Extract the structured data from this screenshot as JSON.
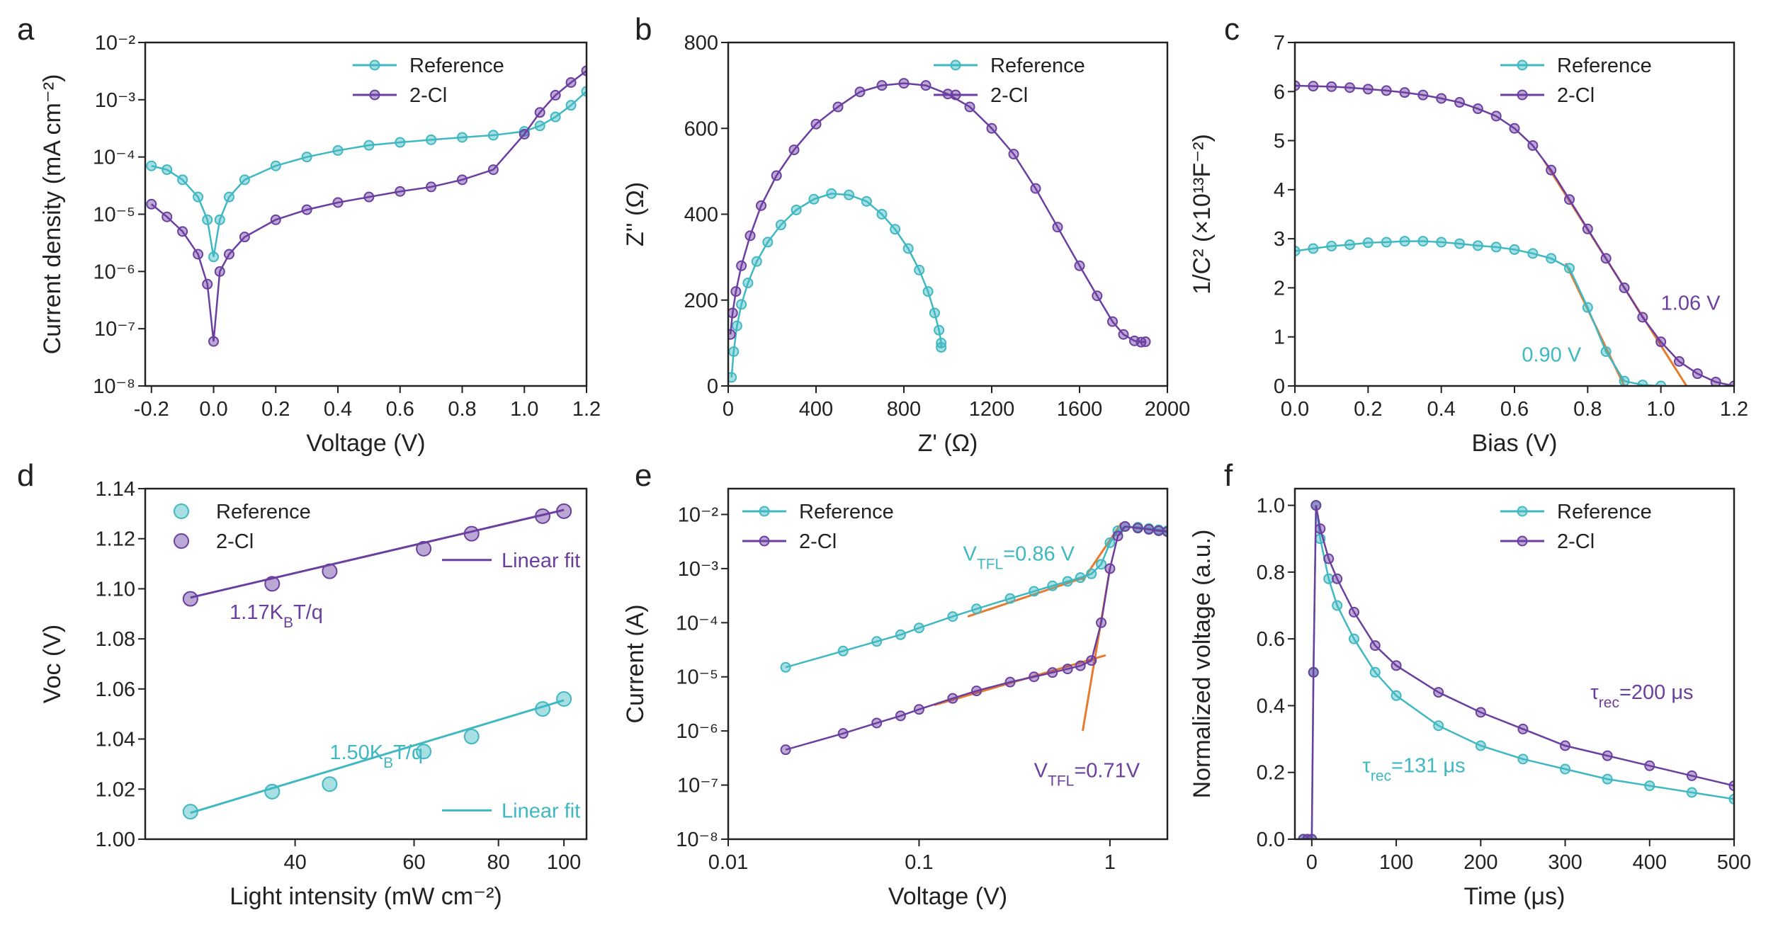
{
  "chart_data": [
    {
      "type": "line",
      "label": "a",
      "xlabel": "Voltage (V)",
      "ylabel": "Current density (mA cm⁻²)",
      "xlim": [
        -0.22,
        1.2
      ],
      "ylim": [
        1e-08,
        0.01
      ],
      "ylog": true,
      "legend": "upper right",
      "xticks": [
        -0.2,
        {
          "value": 0,
          "label": "0.0"
        },
        0.2,
        0.4,
        0.6,
        0.8,
        {
          "value": 1,
          "label": "1.0"
        },
        1.2
      ],
      "yticks": [
        {
          "value": 1e-08,
          "label": "10⁻⁸"
        },
        {
          "value": 1e-07,
          "label": "10⁻⁷"
        },
        {
          "value": 1e-06,
          "label": "10⁻⁶"
        },
        {
          "value": 1e-05,
          "label": "10⁻⁵"
        },
        {
          "value": 0.0001,
          "label": "10⁻⁴"
        },
        {
          "value": 0.001,
          "label": "10⁻³"
        },
        {
          "value": 0.01,
          "label": "10⁻²"
        }
      ],
      "series": [
        {
          "name": "Reference",
          "color": "#3fb8c2",
          "x": [
            -0.2,
            -0.15,
            -0.1,
            -0.05,
            -0.02,
            0,
            0.02,
            0.05,
            0.1,
            0.2,
            0.3,
            0.4,
            0.5,
            0.6,
            0.7,
            0.8,
            0.9,
            1.0,
            1.05,
            1.1,
            1.15,
            1.2
          ],
          "values": [
            7e-05,
            6e-05,
            4e-05,
            2e-05,
            8e-06,
            1.8e-06,
            8e-06,
            2e-05,
            4e-05,
            7e-05,
            0.0001,
            0.00013,
            0.00016,
            0.00018,
            0.0002,
            0.00022,
            0.00024,
            0.00028,
            0.00035,
            0.0005,
            0.0008,
            0.0014
          ]
        },
        {
          "name": "2-Cl",
          "color": "#6b3fa0",
          "x": [
            -0.2,
            -0.15,
            -0.1,
            -0.05,
            -0.02,
            0,
            0.02,
            0.05,
            0.1,
            0.2,
            0.3,
            0.4,
            0.5,
            0.6,
            0.7,
            0.8,
            0.9,
            1.0,
            1.05,
            1.1,
            1.15,
            1.2
          ],
          "values": [
            1.5e-05,
            9e-06,
            5e-06,
            2e-06,
            6e-07,
            6e-08,
            1e-06,
            2e-06,
            4e-06,
            8e-06,
            1.2e-05,
            1.6e-05,
            2e-05,
            2.5e-05,
            3e-05,
            4e-05,
            6e-05,
            0.00025,
            0.0006,
            0.0012,
            0.002,
            0.0032
          ]
        }
      ]
    },
    {
      "type": "line",
      "label": "b",
      "xlabel": "Z' (Ω)",
      "ylabel": "Z'' (Ω)",
      "xlim": [
        0,
        2000
      ],
      "ylim": [
        0,
        800
      ],
      "legend": "upper right",
      "xticks": [
        0,
        400,
        800,
        1200,
        1600,
        2000
      ],
      "yticks": [
        0,
        200,
        400,
        600,
        800
      ],
      "series": [
        {
          "name": "Reference",
          "color": "#3fb8c2",
          "x": [
            15,
            25,
            40,
            60,
            90,
            130,
            180,
            240,
            310,
            390,
            470,
            550,
            630,
            700,
            760,
            820,
            870,
            910,
            940,
            960,
            970,
            970
          ],
          "values": [
            20,
            80,
            140,
            190,
            240,
            290,
            335,
            375,
            410,
            435,
            448,
            445,
            430,
            400,
            365,
            320,
            270,
            220,
            170,
            130,
            100,
            90
          ]
        },
        {
          "name": "2-Cl",
          "color": "#6b3fa0",
          "x": [
            10,
            20,
            35,
            60,
            100,
            150,
            220,
            300,
            400,
            500,
            600,
            700,
            800,
            900,
            1000,
            1100,
            1200,
            1300,
            1400,
            1500,
            1600,
            1680,
            1750,
            1800,
            1850,
            1880,
            1900
          ],
          "values": [
            120,
            170,
            220,
            280,
            350,
            420,
            490,
            550,
            610,
            650,
            685,
            700,
            705,
            700,
            680,
            650,
            600,
            540,
            460,
            370,
            280,
            210,
            150,
            120,
            105,
            102,
            103
          ]
        }
      ]
    },
    {
      "type": "line",
      "label": "c",
      "xlabel": "Bias (V)",
      "ylabel": "1/C² (×10¹³F⁻²)",
      "xlim": [
        0,
        1.2
      ],
      "ylim": [
        0,
        7
      ],
      "legend": "upper right",
      "xticks": [
        {
          "value": 0,
          "label": "0.0"
        },
        0.2,
        0.4,
        0.6,
        0.8,
        {
          "value": 1,
          "label": "1.0"
        },
        1.2
      ],
      "yticks": [
        0,
        1,
        2,
        3,
        4,
        5,
        6,
        7
      ],
      "series": [
        {
          "name": "Reference",
          "color": "#3fb8c2",
          "x": [
            0,
            0.05,
            0.1,
            0.15,
            0.2,
            0.25,
            0.3,
            0.35,
            0.4,
            0.45,
            0.5,
            0.55,
            0.6,
            0.65,
            0.7,
            0.75,
            0.8,
            0.85,
            0.9,
            0.95,
            1.0
          ],
          "values": [
            2.75,
            2.8,
            2.85,
            2.88,
            2.92,
            2.93,
            2.95,
            2.95,
            2.93,
            2.9,
            2.86,
            2.83,
            2.78,
            2.7,
            2.6,
            2.4,
            1.6,
            0.7,
            0.1,
            0.02,
            0
          ]
        },
        {
          "name": "2-Cl",
          "color": "#6b3fa0",
          "x": [
            0,
            0.05,
            0.1,
            0.15,
            0.2,
            0.25,
            0.3,
            0.35,
            0.4,
            0.45,
            0.5,
            0.55,
            0.6,
            0.65,
            0.7,
            0.75,
            0.8,
            0.85,
            0.9,
            0.95,
            1.0,
            1.05,
            1.1,
            1.15,
            1.2
          ],
          "values": [
            6.12,
            6.11,
            6.1,
            6.08,
            6.05,
            6.02,
            5.98,
            5.93,
            5.86,
            5.78,
            5.65,
            5.5,
            5.25,
            4.9,
            4.4,
            3.8,
            3.2,
            2.6,
            2.0,
            1.4,
            0.9,
            0.5,
            0.25,
            0.08,
            0
          ]
        }
      ],
      "fits": [
        {
          "color": "#e87a2e",
          "x": [
            0.68,
            1.07
          ],
          "y": [
            4.6,
            0
          ]
        },
        {
          "color": "#e87a2e",
          "x": [
            0.74,
            0.9
          ],
          "y": [
            2.5,
            0
          ]
        }
      ],
      "annotations": [
        {
          "parts": [
            "1.06 V"
          ],
          "color": "#6b3fa0"
        },
        {
          "parts": [
            "0.90 V"
          ],
          "color": "#3fb8c2"
        }
      ]
    },
    {
      "type": "scatter",
      "label": "d",
      "xlabel": "Light intensity (mW cm⁻²)",
      "ylabel": "Voc (V)",
      "xlim": [
        24,
        108
      ],
      "xlog": true,
      "ylim": [
        1.0,
        1.14
      ],
      "legend": "upper left",
      "xticks": [
        40,
        60,
        80,
        100
      ],
      "yticks": [
        {
          "value": 1.0,
          "label": "1.00"
        },
        1.02,
        1.04,
        1.06,
        1.08,
        {
          "value": 1.1,
          "label": "1.10"
        },
        1.12,
        1.14
      ],
      "series": [
        {
          "name": "Reference",
          "color": "#3fb8c2",
          "x": [
            28,
            37,
            45,
            62,
            73,
            93,
            100
          ],
          "values": [
            1.011,
            1.019,
            1.022,
            1.035,
            1.041,
            1.052,
            1.056
          ]
        },
        {
          "name": "2-Cl",
          "color": "#6b3fa0",
          "x": [
            28,
            37,
            45,
            62,
            73,
            93,
            100
          ],
          "values": [
            1.096,
            1.102,
            1.107,
            1.116,
            1.122,
            1.129,
            1.131
          ]
        }
      ],
      "fits": [
        {
          "name": "Linear fit",
          "color": "#6b3fa0",
          "x": [
            28,
            100
          ],
          "y": [
            1.0965,
            1.1315
          ]
        },
        {
          "name": "Linear fit",
          "color": "#3fb8c2",
          "x": [
            28,
            100
          ],
          "y": [
            1.0105,
            1.0555
          ]
        }
      ],
      "annotations": [
        {
          "parts": [
            "1.17K",
            "B",
            "T/q"
          ],
          "color": "#6b3fa0"
        },
        {
          "parts": [
            "1.50K",
            "B",
            "T/q"
          ],
          "color": "#3fb8c2"
        }
      ]
    },
    {
      "type": "line",
      "label": "e",
      "xlabel": "Voltage (V)",
      "ylabel": "Current (A)",
      "xlim": [
        0.01,
        2
      ],
      "xlog": true,
      "ylim": [
        1e-08,
        0.03
      ],
      "ylog": true,
      "legend": "upper left",
      "xticks": [
        0.01,
        0.1,
        1
      ],
      "yticks": [
        {
          "value": 1e-08,
          "label": "10⁻⁸"
        },
        {
          "value": 1e-07,
          "label": "10⁻⁷"
        },
        {
          "value": 1e-06,
          "label": "10⁻⁶"
        },
        {
          "value": 1e-05,
          "label": "10⁻⁵"
        },
        {
          "value": 0.0001,
          "label": "10⁻⁴"
        },
        {
          "value": 0.001,
          "label": "10⁻³"
        },
        {
          "value": 0.01,
          "label": "10⁻²"
        }
      ],
      "series": [
        {
          "name": "Reference",
          "color": "#3fb8c2",
          "x": [
            0.02,
            0.04,
            0.06,
            0.08,
            0.1,
            0.15,
            0.2,
            0.3,
            0.4,
            0.5,
            0.6,
            0.7,
            0.8,
            0.9,
            1.0,
            1.1,
            1.2,
            1.4,
            1.6,
            1.8,
            2.0
          ],
          "values": [
            1.5e-05,
            3e-05,
            4.5e-05,
            6e-05,
            8e-05,
            0.00013,
            0.00018,
            0.00028,
            0.00038,
            0.00048,
            0.00058,
            0.00068,
            0.0008,
            0.0012,
            0.003,
            0.005,
            0.006,
            0.0058,
            0.0055,
            0.0052,
            0.005
          ]
        },
        {
          "name": "2-Cl",
          "color": "#6b3fa0",
          "x": [
            0.02,
            0.04,
            0.06,
            0.08,
            0.1,
            0.15,
            0.2,
            0.3,
            0.4,
            0.5,
            0.6,
            0.7,
            0.8,
            0.9,
            1.0,
            1.1,
            1.2,
            1.4,
            1.6,
            1.8,
            2.0
          ],
          "values": [
            4.5e-07,
            9e-07,
            1.4e-06,
            1.9e-06,
            2.5e-06,
            4e-06,
            5.5e-06,
            8e-06,
            1e-05,
            1.2e-05,
            1.4e-05,
            1.6e-05,
            2e-05,
            0.0001,
            0.001,
            0.004,
            0.006,
            0.0056,
            0.0053,
            0.005,
            0.0048
          ]
        }
      ],
      "fits": [
        {
          "color": "#e87a2e",
          "x": [
            0.18,
            0.75
          ],
          "y": [
            0.00013,
            0.0007
          ]
        },
        {
          "color": "#e87a2e",
          "x": [
            0.72,
            1.15
          ],
          "y": [
            0.0006,
            0.007
          ]
        },
        {
          "color": "#e87a2e",
          "x": [
            0.12,
            0.95
          ],
          "y": [
            3e-06,
            2.5e-05
          ]
        },
        {
          "color": "#e87a2e",
          "x": [
            0.72,
            1.0
          ],
          "y": [
            1e-06,
            0.001
          ]
        }
      ],
      "annotations": [
        {
          "parts": [
            "V",
            "TFL",
            "=0.86 V"
          ],
          "color": "#3fb8c2"
        },
        {
          "parts": [
            "V",
            "TFL",
            "=0.71V"
          ],
          "color": "#6b3fa0"
        }
      ]
    },
    {
      "type": "line",
      "label": "f",
      "xlabel": "Time (μs)",
      "ylabel": "Normalized voltage (a.u.)",
      "xlim": [
        -20,
        500
      ],
      "ylim": [
        0,
        1.05
      ],
      "legend": "upper right",
      "xticks": [
        0,
        100,
        200,
        300,
        400,
        500
      ],
      "yticks": [
        {
          "value": 0,
          "label": "0.0"
        },
        0.2,
        0.4,
        0.6,
        0.8,
        {
          "value": 1,
          "label": "1.0"
        }
      ],
      "series": [
        {
          "name": "Reference",
          "color": "#3fb8c2",
          "x": [
            -10,
            -5,
            0,
            2,
            5,
            10,
            20,
            30,
            50,
            75,
            100,
            150,
            200,
            250,
            300,
            350,
            400,
            450,
            500
          ],
          "values": [
            0,
            0,
            0,
            0.5,
            1.0,
            0.9,
            0.78,
            0.7,
            0.6,
            0.5,
            0.43,
            0.34,
            0.28,
            0.24,
            0.21,
            0.18,
            0.16,
            0.14,
            0.12
          ]
        },
        {
          "name": "2-Cl",
          "color": "#6b3fa0",
          "x": [
            -10,
            -5,
            0,
            2,
            5,
            10,
            20,
            30,
            50,
            75,
            100,
            150,
            200,
            250,
            300,
            350,
            400,
            450,
            500
          ],
          "values": [
            0,
            0,
            0,
            0.5,
            1.0,
            0.93,
            0.84,
            0.78,
            0.68,
            0.58,
            0.52,
            0.44,
            0.38,
            0.33,
            0.28,
            0.25,
            0.22,
            0.19,
            0.16
          ]
        }
      ],
      "annotations": [
        {
          "parts": [
            "τ",
            "rec",
            "=200 μs"
          ],
          "color": "#6b3fa0"
        },
        {
          "parts": [
            "τ",
            "rec",
            "=131 μs"
          ],
          "color": "#3fb8c2"
        }
      ]
    }
  ]
}
